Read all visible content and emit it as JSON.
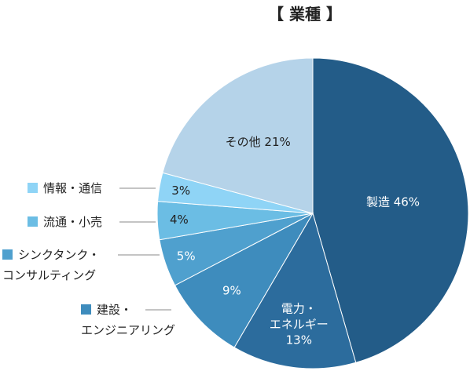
{
  "chart_data": {
    "type": "pie",
    "title": "【 業種 】",
    "slices": [
      {
        "label": "製造",
        "value": 46,
        "value_text": "46%",
        "color": "#235C88",
        "text_color": "#ffffff",
        "lines": [
          "製造 46%"
        ]
      },
      {
        "label": "電力・エネルギー",
        "value": 13,
        "value_text": "13%",
        "color": "#2C6C9D",
        "text_color": "#ffffff",
        "lines": [
          "電力・",
          "エネルギー",
          "13%"
        ]
      },
      {
        "label": "建設・エンジニアリング",
        "value": 9,
        "value_text": "9%",
        "color": "#3E8CBD",
        "text_color": "#ffffff",
        "lines": [
          "9%"
        ],
        "legend": [
          "建設・",
          "エンジニアリング"
        ]
      },
      {
        "label": "シンクタンク・コンサルティング",
        "value": 5,
        "value_text": "5%",
        "color": "#4FA0CE",
        "text_color": "#ffffff",
        "lines": [
          "5%"
        ],
        "legend": [
          "シンクタンク・",
          "コンサルティング"
        ]
      },
      {
        "label": "流通・小売",
        "value": 4,
        "value_text": "4%",
        "color": "#6BBDE4",
        "text_color": "#222222",
        "lines": [
          "4%"
        ],
        "legend": [
          "流通・小売"
        ]
      },
      {
        "label": "情報・通信",
        "value": 3,
        "value_text": "3%",
        "color": "#8FD4F6",
        "text_color": "#222222",
        "lines": [
          "3%"
        ],
        "legend": [
          "情報・通信"
        ]
      },
      {
        "label": "その他",
        "value": 21,
        "value_text": "21%",
        "color": "#B5D3E9",
        "text_color": "#222222",
        "lines": [
          "その他 21%"
        ]
      }
    ]
  }
}
